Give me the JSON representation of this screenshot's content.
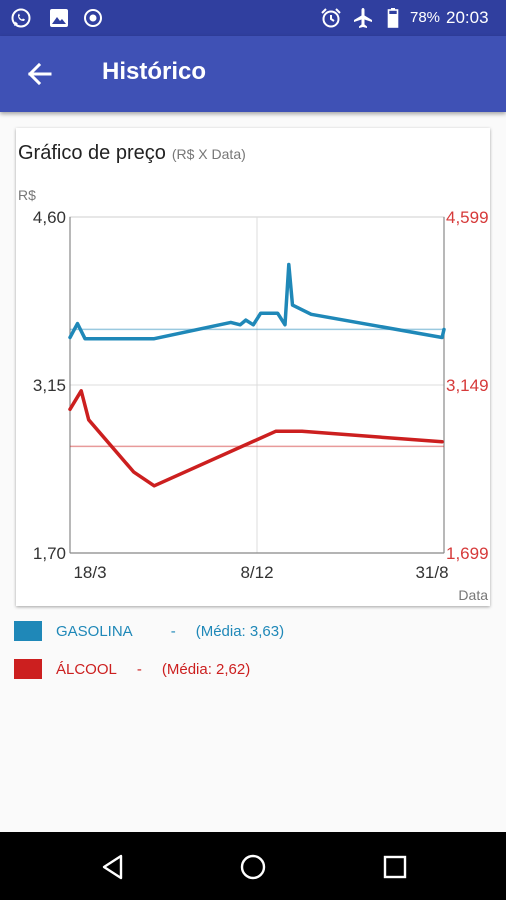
{
  "status_bar": {
    "battery": "78%",
    "time": "20:03",
    "icons": [
      "whatsapp-icon",
      "gallery-icon",
      "record-icon",
      "alarm-icon",
      "airplane-icon",
      "battery-icon"
    ]
  },
  "app_bar": {
    "title": "Histórico",
    "back_icon": "arrow-back-icon"
  },
  "chart_card": {
    "title": "Gráfico de preço",
    "subtitle": "(R$ X Data)"
  },
  "chart_data": {
    "type": "line",
    "title": "Gráfico de preço",
    "subtitle": "(R$ X Data)",
    "ylabel": "R$",
    "xlabel": "Data",
    "ylim": [
      1.7,
      4.6
    ],
    "y_ticks_left": [
      "4,60",
      "3,15",
      "1,70"
    ],
    "y_ticks_right": [
      "4,599",
      "3,149",
      "1,699"
    ],
    "x_ticks": [
      "18/3",
      "8/12",
      "31/8"
    ],
    "grid": true,
    "series": [
      {
        "name": "GASOLINA",
        "color": "#1f88b8",
        "average": 3.63,
        "x": [
          0,
          0.02,
          0.04,
          0.225,
          0.43,
          0.455,
          0.47,
          0.49,
          0.51,
          0.555,
          0.575,
          0.585,
          0.595,
          0.645,
          0.995,
          1.0
        ],
        "y": [
          3.56,
          3.68,
          3.55,
          3.55,
          3.69,
          3.67,
          3.71,
          3.67,
          3.77,
          3.77,
          3.67,
          4.19,
          3.84,
          3.76,
          3.56,
          3.63
        ]
      },
      {
        "name": "ÁLCOOL",
        "color": "#cc1f1f",
        "average": 2.62,
        "x": [
          0,
          0.03,
          0.05,
          0.17,
          0.225,
          0.55,
          0.62,
          0.995
        ],
        "y": [
          2.94,
          3.1,
          2.85,
          2.4,
          2.28,
          2.75,
          2.75,
          2.66
        ]
      }
    ]
  },
  "legend": [
    {
      "label": "GASOLINA",
      "separator": "-",
      "average_text": "(Média: 3,63)",
      "color": "#1f88b8"
    },
    {
      "label": "ÁLCOOL",
      "separator": "-",
      "average_text": "(Média: 2,62)",
      "color": "#cc1f1f"
    }
  ],
  "nav_bar": {
    "icons": [
      "back-triangle-icon",
      "home-circle-icon",
      "recents-square-icon"
    ]
  }
}
